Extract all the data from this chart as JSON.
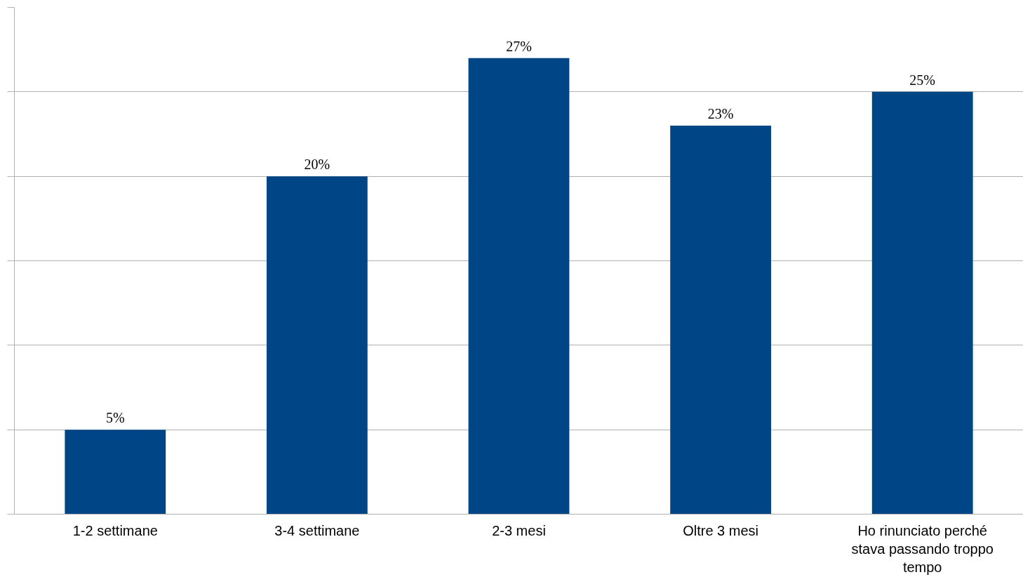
{
  "chart_data": {
    "type": "bar",
    "categories": [
      "1-2 settimane",
      "3-4 settimane",
      "2-3 mesi",
      "Oltre 3 mesi",
      "Ho rinunciato perché stava passando troppo tempo"
    ],
    "values": [
      5,
      20,
      27,
      23,
      25
    ],
    "value_labels": [
      "5%",
      "20%",
      "27%",
      "23%",
      "25%"
    ],
    "color": "#004586",
    "ylim": [
      0,
      30
    ],
    "yticks": [
      {
        "value": 0,
        "label": null
      },
      {
        "value": 5,
        "label": null
      },
      {
        "value": 10,
        "label": null
      },
      {
        "value": 15,
        "label": null
      },
      {
        "value": 20,
        "label": null
      },
      {
        "value": 25,
        "label": null
      },
      {
        "value": 30,
        "label": null
      }
    ],
    "grid": "y",
    "tick_labels": "x"
  }
}
